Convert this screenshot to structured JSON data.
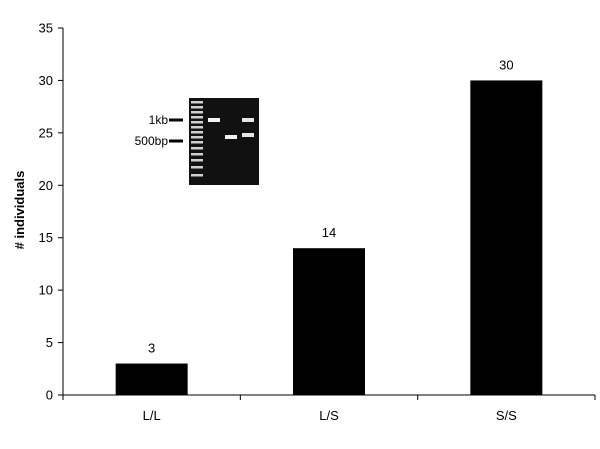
{
  "chart_data": {
    "type": "bar",
    "categories": [
      "L/L",
      "L/S",
      "S/S"
    ],
    "values": [
      3,
      14,
      30
    ],
    "data_labels": [
      "3",
      "14",
      "30"
    ],
    "ylabel": "# individuals",
    "xlabel": "",
    "ylim": [
      0,
      35
    ],
    "yticks": [
      0,
      5,
      10,
      15,
      20,
      25,
      30,
      35
    ],
    "bar_color": "#000000",
    "grid": false,
    "legend": "none"
  },
  "inset": {
    "description_type": "gel-image",
    "marker_labels": [
      "1kb",
      "500bp"
    ]
  }
}
